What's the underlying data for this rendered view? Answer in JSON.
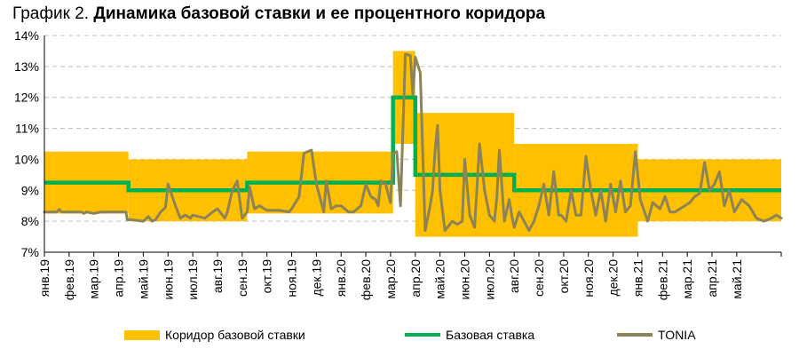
{
  "title_prefix": "График 2. ",
  "title_main": "Динамика базовой ставки и ее процентного коридора",
  "colors": {
    "corridor": "#FFC000",
    "base": "#00B050",
    "tonia": "#8C8456",
    "grid": "#BFBFBF"
  },
  "legend": {
    "corridor": "Коридор базовой ставки",
    "base": "Базовая ставка",
    "tonia": "TONIA"
  },
  "chart_data": {
    "type": "area",
    "x_unit": "month index (0 = янв.19, 29.8 = end of series)",
    "xlim": [
      0,
      29.8
    ],
    "ylim": [
      7,
      14
    ],
    "grid": true,
    "yticks": [
      "7%",
      "8%",
      "9%",
      "10%",
      "11%",
      "12%",
      "13%",
      "14%"
    ],
    "categories": [
      "янв.19",
      "фев.19",
      "мар.19",
      "апр.19",
      "май.19",
      "июн.19",
      "июл.19",
      "авг.19",
      "сен.19",
      "окт.19",
      "ноя.19",
      "дек.19",
      "янв.20",
      "фев.20",
      "мар.20",
      "апр.20",
      "май.20",
      "июн.20",
      "июл.20",
      "авг.20",
      "сен.20",
      "окт.20",
      "ноя.20",
      "дек.20",
      "янв.21",
      "фев.21",
      "мар.21",
      "апр.21",
      "май.21"
    ],
    "corridor": {
      "name": "Коридор базовой ставки",
      "steps": [
        {
          "from": 0,
          "to": 3.4,
          "low": 8.25,
          "high": 10.25
        },
        {
          "from": 3.4,
          "to": 8.2,
          "low": 8.0,
          "high": 10.0
        },
        {
          "from": 8.2,
          "to": 14.1,
          "low": 8.25,
          "high": 10.25
        },
        {
          "from": 14.1,
          "to": 15.0,
          "low": 10.5,
          "high": 13.5
        },
        {
          "from": 15.0,
          "to": 19.0,
          "low": 7.5,
          "high": 11.5
        },
        {
          "from": 19.0,
          "to": 24.0,
          "low": 7.5,
          "high": 10.5
        },
        {
          "from": 24.0,
          "to": 29.8,
          "low": 8.0,
          "high": 10.0
        }
      ]
    },
    "base_rate": {
      "name": "Базовая ставка",
      "x": [
        0,
        3.4,
        3.4,
        8.2,
        8.2,
        14.1,
        14.1,
        15.0,
        15.0,
        19.0,
        19.0,
        29.8
      ],
      "y": [
        9.25,
        9.25,
        9.0,
        9.0,
        9.25,
        9.25,
        12.0,
        12.0,
        9.5,
        9.5,
        9.0,
        9.0
      ]
    },
    "tonia": {
      "name": "TONIA",
      "x": [
        0,
        0.5,
        0.6,
        0.7,
        1.0,
        1.5,
        1.6,
        1.7,
        2.0,
        2.3,
        2.5,
        3.0,
        3.3,
        3.35,
        3.5,
        4.0,
        4.2,
        4.35,
        4.5,
        4.7,
        4.9,
        5.0,
        5.3,
        5.5,
        5.7,
        5.9,
        6.0,
        6.5,
        6.8,
        7.0,
        7.3,
        7.4,
        7.6,
        7.8,
        8.0,
        8.2,
        8.3,
        8.5,
        8.7,
        9.0,
        9.5,
        9.9,
        10.0,
        10.3,
        10.5,
        10.8,
        11.0,
        11.3,
        11.4,
        11.6,
        11.8,
        12.0,
        12.3,
        12.5,
        12.8,
        13.0,
        13.2,
        13.4,
        13.5,
        13.6,
        13.8,
        14.0,
        14.1,
        14.25,
        14.4,
        14.6,
        14.8,
        14.9,
        15.0,
        15.2,
        15.4,
        15.6,
        15.7,
        15.8,
        15.9,
        16.0,
        16.2,
        16.5,
        16.7,
        16.9,
        17.0,
        17.2,
        17.4,
        17.6,
        17.8,
        18.0,
        18.2,
        18.3,
        18.4,
        18.6,
        18.8,
        18.9,
        19.0,
        19.2,
        19.4,
        19.6,
        19.8,
        20.0,
        20.2,
        20.4,
        20.6,
        20.8,
        20.9,
        21.1,
        21.3,
        21.5,
        21.7,
        21.9,
        22.1,
        22.3,
        22.5,
        22.7,
        22.9,
        23.1,
        23.3,
        23.5,
        23.7,
        23.9,
        24.1,
        24.4,
        24.6,
        24.9,
        25.1,
        25.3,
        25.5,
        25.7,
        25.9,
        26.1,
        26.3,
        26.5,
        26.7,
        26.9,
        27.1,
        27.3,
        27.5,
        27.7,
        27.9,
        28.2,
        28.5,
        28.8,
        29.1,
        29.4,
        29.6,
        29.8
      ],
      "y": [
        8.3,
        8.3,
        8.38,
        8.3,
        8.3,
        8.3,
        8.25,
        8.3,
        8.25,
        8.3,
        8.3,
        8.3,
        8.3,
        8.05,
        8.05,
        8.0,
        8.15,
        8.0,
        8.05,
        8.3,
        8.45,
        9.2,
        8.5,
        8.1,
        8.2,
        8.1,
        8.2,
        8.1,
        8.3,
        8.4,
        8.1,
        8.3,
        9.0,
        9.3,
        8.1,
        8.3,
        9.1,
        8.4,
        8.5,
        8.35,
        8.35,
        8.3,
        8.4,
        8.8,
        10.2,
        10.3,
        9.2,
        8.3,
        9.3,
        8.4,
        8.5,
        8.5,
        8.3,
        8.3,
        8.5,
        9.2,
        8.8,
        8.7,
        8.5,
        9.3,
        9.2,
        8.6,
        10.2,
        10.25,
        8.5,
        13.4,
        13.35,
        12.1,
        13.3,
        12.8,
        7.7,
        8.5,
        9.0,
        10.3,
        11.1,
        9.0,
        7.7,
        8.0,
        7.9,
        8.0,
        10.0,
        8.2,
        7.8,
        10.5,
        9.0,
        8.2,
        8.0,
        8.8,
        10.3,
        8.0,
        8.7,
        8.2,
        7.8,
        8.3,
        8.0,
        7.7,
        8.0,
        8.5,
        9.2,
        8.2,
        9.6,
        8.2,
        8.2,
        8.0,
        9.0,
        8.2,
        8.2,
        10.1,
        9.0,
        8.2,
        9.0,
        8.0,
        9.2,
        8.3,
        9.3,
        8.3,
        8.5,
        10.25,
        8.7,
        8.0,
        8.6,
        8.4,
        8.8,
        8.3,
        8.3,
        8.4,
        8.5,
        8.6,
        8.8,
        8.9,
        9.9,
        9.0,
        9.2,
        9.6,
        8.5,
        9.0,
        8.3,
        8.7,
        8.5,
        8.1,
        8.0,
        8.1,
        8.2,
        8.1
      ]
    }
  }
}
